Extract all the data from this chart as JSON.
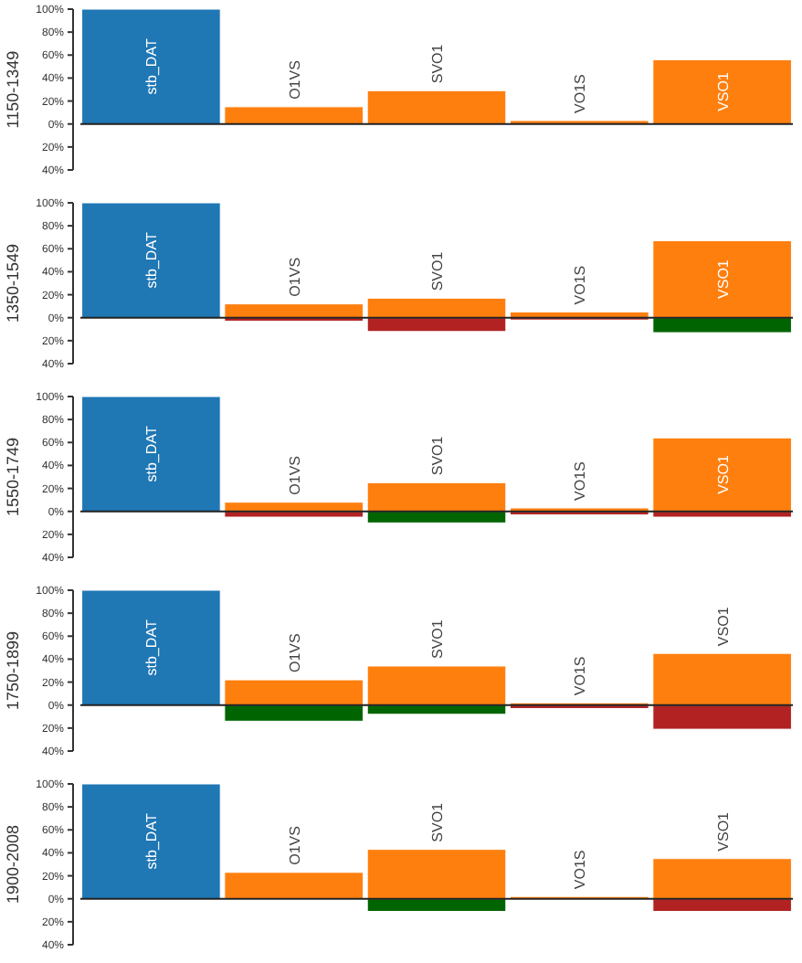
{
  "chart_data": [
    {
      "type": "bar",
      "ylabel": "1150-1349",
      "categories": [
        "stb_DAT",
        "O1VS",
        "SVO1",
        "VO1S",
        "VSO1"
      ],
      "stacked": true,
      "ylim": [
        -40,
        100
      ],
      "yticks": [
        {
          "value": 100,
          "label": "100%"
        },
        {
          "value": 80,
          "label": "80%"
        },
        {
          "value": 60,
          "label": "60%"
        },
        {
          "value": 40,
          "label": "40%"
        },
        {
          "value": 20,
          "label": "20%"
        },
        {
          "value": 0,
          "label": "0%"
        },
        {
          "value": -20,
          "label": "20%"
        },
        {
          "value": -40,
          "label": "40%"
        }
      ],
      "series": [
        {
          "colors": [
            "#1f77b4",
            "#ff7f0e",
            "#ff7f0e",
            "#ff7f0e",
            "#ff7f0e"
          ],
          "values": [
            100,
            15,
            29,
            3,
            56
          ]
        }
      ]
    },
    {
      "type": "bar",
      "ylabel": "1350-1549",
      "categories": [
        "stb_DAT",
        "O1VS",
        "SVO1",
        "VO1S",
        "VSO1"
      ],
      "stacked": true,
      "ylim": [
        -40,
        100
      ],
      "yticks": [
        {
          "value": 100,
          "label": "100%"
        },
        {
          "value": 80,
          "label": "80%"
        },
        {
          "value": 60,
          "label": "60%"
        },
        {
          "value": 40,
          "label": "40%"
        },
        {
          "value": 20,
          "label": "20%"
        },
        {
          "value": 0,
          "label": "0%"
        },
        {
          "value": -20,
          "label": "20%"
        },
        {
          "value": -40,
          "label": "40%"
        }
      ],
      "series": [
        {
          "colors": [
            "#1f77b4",
            "#ff7f0e",
            "#ff7f0e",
            "#ff7f0e",
            "#ff7f0e"
          ],
          "values": [
            100,
            12,
            17,
            5,
            67
          ]
        },
        {
          "colors": [
            null,
            "#b22222",
            "#b22222",
            "#b22222",
            "#006400"
          ],
          "values": [
            null,
            -3,
            -12,
            -2,
            -13
          ]
        }
      ]
    },
    {
      "type": "bar",
      "ylabel": "1550-1749",
      "categories": [
        "stb_DAT",
        "O1VS",
        "SVO1",
        "VO1S",
        "VSO1"
      ],
      "stacked": true,
      "ylim": [
        -40,
        100
      ],
      "yticks": [
        {
          "value": 100,
          "label": "100%"
        },
        {
          "value": 80,
          "label": "80%"
        },
        {
          "value": 60,
          "label": "60%"
        },
        {
          "value": 40,
          "label": "40%"
        },
        {
          "value": 20,
          "label": "20%"
        },
        {
          "value": 0,
          "label": "0%"
        },
        {
          "value": -20,
          "label": "20%"
        },
        {
          "value": -40,
          "label": "40%"
        }
      ],
      "series": [
        {
          "colors": [
            "#1f77b4",
            "#ff7f0e",
            "#ff7f0e",
            "#ff7f0e",
            "#ff7f0e"
          ],
          "values": [
            100,
            8,
            25,
            3,
            64
          ]
        },
        {
          "colors": [
            null,
            "#b22222",
            "#006400",
            "#b22222",
            "#b22222"
          ],
          "values": [
            null,
            -5,
            -10,
            -3,
            -5
          ]
        }
      ]
    },
    {
      "type": "bar",
      "ylabel": "1750-1899",
      "categories": [
        "stb_DAT",
        "O1VS",
        "SVO1",
        "VO1S",
        "VSO1"
      ],
      "stacked": true,
      "ylim": [
        -40,
        100
      ],
      "yticks": [
        {
          "value": 100,
          "label": "100%"
        },
        {
          "value": 80,
          "label": "80%"
        },
        {
          "value": 60,
          "label": "60%"
        },
        {
          "value": 40,
          "label": "40%"
        },
        {
          "value": 20,
          "label": "20%"
        },
        {
          "value": 0,
          "label": "0%"
        },
        {
          "value": -20,
          "label": "20%"
        },
        {
          "value": -40,
          "label": "40%"
        }
      ],
      "series": [
        {
          "colors": [
            "#1f77b4",
            "#ff7f0e",
            "#ff7f0e",
            "#ff7f0e",
            "#ff7f0e"
          ],
          "values": [
            100,
            22,
            34,
            2,
            45
          ]
        },
        {
          "colors": [
            null,
            "#006400",
            "#006400",
            "#b22222",
            "#b22222"
          ],
          "values": [
            null,
            -14,
            -8,
            -3,
            -21
          ]
        }
      ]
    },
    {
      "type": "bar",
      "ylabel": "1900-2008",
      "categories": [
        "stb_DAT",
        "O1VS",
        "SVO1",
        "VO1S",
        "VSO1"
      ],
      "stacked": true,
      "ylim": [
        -40,
        100
      ],
      "yticks": [
        {
          "value": 100,
          "label": "100%"
        },
        {
          "value": 80,
          "label": "80%"
        },
        {
          "value": 60,
          "label": "60%"
        },
        {
          "value": 40,
          "label": "40%"
        },
        {
          "value": 20,
          "label": "20%"
        },
        {
          "value": 0,
          "label": "0%"
        },
        {
          "value": -20,
          "label": "20%"
        },
        {
          "value": -40,
          "label": "40%"
        }
      ],
      "series": [
        {
          "colors": [
            "#1f77b4",
            "#ff7f0e",
            "#ff7f0e",
            "#ff7f0e",
            "#ff7f0e"
          ],
          "values": [
            100,
            23,
            43,
            2,
            35
          ]
        },
        {
          "colors": [
            null,
            null,
            "#006400",
            null,
            "#b22222"
          ],
          "values": [
            null,
            null,
            -11,
            null,
            -11
          ]
        }
      ]
    }
  ]
}
